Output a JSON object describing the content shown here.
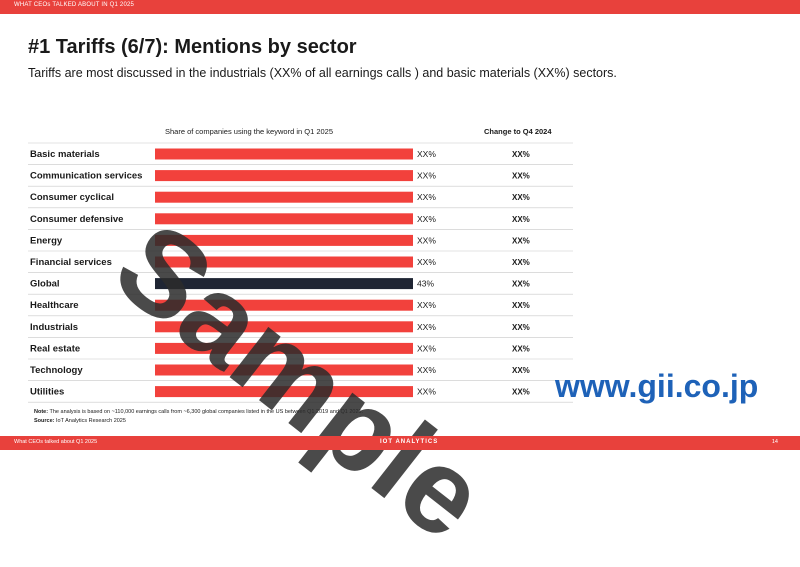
{
  "header": {
    "label": "WHAT CEOs TALKED ABOUT IN Q1 2025"
  },
  "title": "#1 Tariffs (6/7): Mentions by sector",
  "subtitle": "Tariffs are most discussed in the industrials (XX% of all earnings calls ) and basic materials (XX%) sectors.",
  "columns": {
    "share": "Share of companies using the keyword in Q1 2025",
    "change": "Change to Q4 2024"
  },
  "colors": {
    "bar": "#f2413c",
    "highlight": "#1f2533",
    "accent": "#e8413c",
    "grid": "#c8c8c8"
  },
  "chart_data": {
    "type": "bar",
    "orientation": "horizontal",
    "categories": [
      "Basic materials",
      "Communication services",
      "Consumer cyclical",
      "Consumer defensive",
      "Energy",
      "Financial services",
      "Global",
      "Healthcare",
      "Industrials",
      "Real estate",
      "Technology",
      "Utilities"
    ],
    "value_labels": [
      "XX%",
      "XX%",
      "XX%",
      "XX%",
      "XX%",
      "XX%",
      "43%",
      "XX%",
      "XX%",
      "XX%",
      "XX%",
      "XX%"
    ],
    "change_labels": [
      "XX%",
      "XX%",
      "XX%",
      "XX%",
      "XX%",
      "XX%",
      "XX%",
      "XX%",
      "XX%",
      "XX%",
      "XX%",
      "XX%"
    ],
    "highlight": "Global"
  },
  "notes": {
    "note_label": "Note:",
    "note_text": "The analysis is based on ~110,000 earnings calls from ~6,300 global companies listed in the US between Q1 2019 and Q1 2025.",
    "source_label": "Source:",
    "source_text": "IoT Analytics Research 2025"
  },
  "footer": {
    "left": "What CEOs talked about Q1 2025",
    "brand": "IOT ANALYTICS",
    "page": "14"
  },
  "watermark": "Sample",
  "site": "www.gii.co.jp"
}
